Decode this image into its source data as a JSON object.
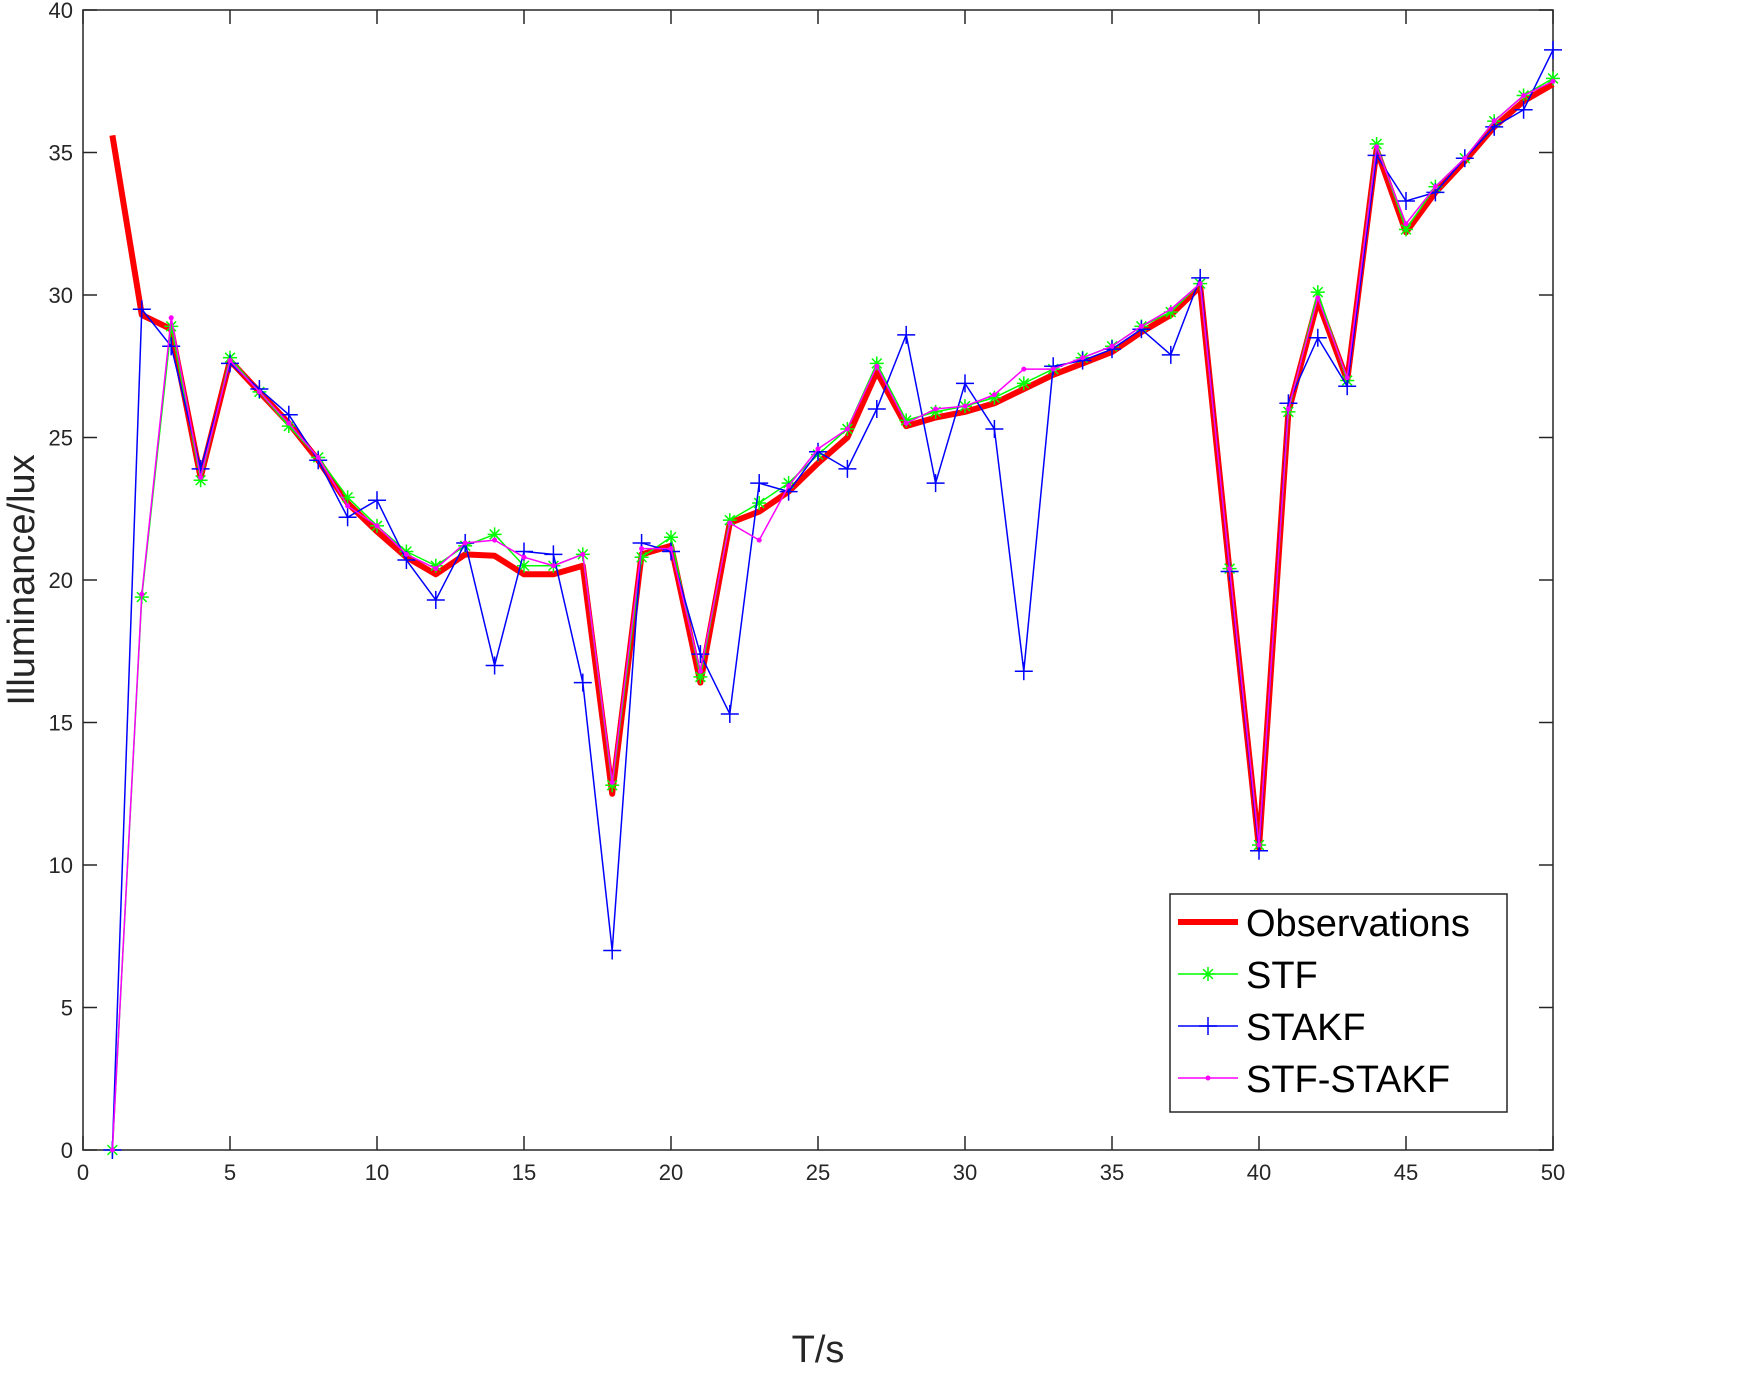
{
  "chart_data": {
    "type": "line",
    "x_label": "T/s",
    "y_label": "Illuminance/lux",
    "x": [
      1,
      2,
      3,
      4,
      5,
      6,
      7,
      8,
      9,
      10,
      11,
      12,
      13,
      14,
      15,
      16,
      17,
      18,
      19,
      20,
      21,
      22,
      23,
      24,
      25,
      26,
      27,
      28,
      29,
      30,
      31,
      32,
      33,
      34,
      35,
      36,
      37,
      38,
      39,
      40,
      41,
      42,
      43,
      44,
      45,
      46,
      47,
      48,
      49,
      50
    ],
    "series": [
      {
        "name": "Observations",
        "color": "#ff0000",
        "linewidth": 6,
        "marker": "none",
        "values": [
          35.6,
          29.3,
          28.8,
          23.6,
          27.7,
          26.6,
          25.5,
          24.2,
          22.7,
          21.7,
          20.8,
          20.2,
          20.9,
          20.85,
          20.2,
          20.2,
          20.5,
          12.5,
          20.9,
          21.2,
          16.4,
          22.0,
          22.4,
          23.1,
          24.1,
          25.0,
          27.3,
          25.4,
          25.7,
          25.9,
          26.2,
          26.7,
          27.2,
          27.6,
          28.0,
          28.7,
          29.3,
          30.3,
          20.3,
          10.6,
          25.9,
          29.8,
          27.0,
          35.1,
          32.2,
          33.6,
          34.7,
          35.9,
          36.8,
          37.4
        ]
      },
      {
        "name": "STF",
        "color": "#00ff00",
        "linewidth": 1.5,
        "marker": "*",
        "values": [
          0,
          19.4,
          28.9,
          23.5,
          27.8,
          26.6,
          25.4,
          24.3,
          22.9,
          21.9,
          21.0,
          20.5,
          21.2,
          21.6,
          20.5,
          20.5,
          20.9,
          12.8,
          20.8,
          21.5,
          16.6,
          22.1,
          22.7,
          23.4,
          24.4,
          25.3,
          27.6,
          25.6,
          25.9,
          26.1,
          26.4,
          26.9,
          27.4,
          27.8,
          28.2,
          28.9,
          29.4,
          30.4,
          20.4,
          10.7,
          25.9,
          30.1,
          27.0,
          35.3,
          32.3,
          33.8,
          34.8,
          36.1,
          37.0,
          37.6
        ]
      },
      {
        "name": "STAKF",
        "color": "#0000ff",
        "linewidth": 1.5,
        "marker": "+",
        "values": [
          0,
          29.5,
          28.2,
          23.9,
          27.6,
          26.7,
          25.8,
          24.2,
          22.2,
          22.8,
          20.7,
          19.3,
          21.3,
          17.0,
          21.0,
          20.9,
          16.4,
          7.0,
          21.3,
          21.0,
          17.4,
          15.3,
          23.4,
          23.1,
          24.5,
          23.9,
          26.0,
          28.6,
          23.4,
          26.9,
          25.3,
          16.8,
          27.5,
          27.7,
          28.1,
          28.8,
          27.9,
          30.6,
          20.3,
          10.5,
          26.2,
          28.5,
          26.8,
          34.9,
          33.3,
          33.6,
          34.8,
          35.9,
          36.5,
          38.6
        ]
      },
      {
        "name": "STF-STAKF",
        "color": "#ff00ff",
        "linewidth": 1.5,
        "marker": ".",
        "values": [
          0,
          19.5,
          29.2,
          23.6,
          27.7,
          26.6,
          25.5,
          24.3,
          22.6,
          21.9,
          20.9,
          20.4,
          21.3,
          21.4,
          20.8,
          20.5,
          20.9,
          12.9,
          21.1,
          21.1,
          16.8,
          22.0,
          21.4,
          23.3,
          24.6,
          25.3,
          27.5,
          25.5,
          26.0,
          26.1,
          26.5,
          27.4,
          27.4,
          27.8,
          28.2,
          28.9,
          29.5,
          30.4,
          20.4,
          10.7,
          26.0,
          29.9,
          27.1,
          35.2,
          32.5,
          33.8,
          34.8,
          36.1,
          37.0,
          37.5
        ]
      }
    ],
    "xlim": [
      0,
      50
    ],
    "xticks": [
      0,
      5,
      10,
      15,
      20,
      25,
      30,
      35,
      40,
      45,
      50
    ],
    "ylim": [
      0,
      40
    ],
    "yticks": [
      0,
      5,
      10,
      15,
      20,
      25,
      30,
      35,
      40
    ],
    "grid": false,
    "legend": "lower right"
  }
}
